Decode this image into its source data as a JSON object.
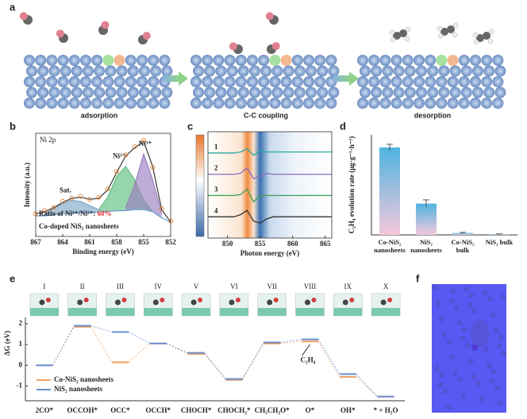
{
  "panel_labels": [
    "a",
    "b",
    "c",
    "d",
    "e",
    "f"
  ],
  "schematic": {
    "steps": [
      "adsorption",
      "C-C coupling",
      "desorption"
    ]
  },
  "chart_data": [
    {
      "type": "line",
      "title": "Ni 2p",
      "xlabel": "Binding energy (eV)",
      "ylabel": "Intensity (a.u.)",
      "x": [
        867,
        866,
        865,
        864,
        863,
        862,
        861,
        860,
        859,
        858,
        857,
        856,
        855,
        854,
        853,
        852
      ],
      "xlim": [
        867,
        852
      ],
      "xticks": [
        867,
        864,
        861,
        858,
        855,
        852
      ],
      "ylim": [
        0,
        100
      ],
      "series": [
        {
          "name": "Sat.",
          "color": "#7fa8c8",
          "values": [
            null,
            22,
            27,
            32,
            35,
            34,
            30,
            26,
            null,
            null,
            null,
            null,
            null,
            null,
            null,
            null
          ]
        },
        {
          "name": "Ni²⁺",
          "color": "#5fbf7f",
          "values": [
            null,
            null,
            null,
            null,
            null,
            null,
            null,
            26,
            38,
            58,
            68,
            55,
            35,
            24,
            null,
            null
          ]
        },
        {
          "name": "Ni³⁺",
          "color": "#9b7fc0",
          "values": [
            null,
            null,
            null,
            null,
            null,
            null,
            null,
            null,
            null,
            null,
            28,
            50,
            80,
            55,
            22,
            null
          ]
        },
        {
          "color": "#6aa0d0",
          "values": [
            20,
            20,
            21,
            22,
            22,
            23,
            23,
            24,
            24,
            25,
            25,
            26,
            26,
            24,
            18,
            14
          ]
        },
        {
          "color": "#333333",
          "values": [
            22,
            24,
            28,
            33,
            37,
            38,
            36,
            37,
            45,
            62,
            78,
            86,
            92,
            68,
            26,
            14
          ]
        },
        {
          "color": "#e8873a",
          "marker": "circle",
          "values": [
            22,
            25,
            28,
            34,
            37,
            39,
            36,
            38,
            46,
            63,
            79,
            87,
            93,
            67,
            27,
            15
          ]
        }
      ],
      "annotations": {
        "ratio_text": "Ratio of Ni³⁺/Ni²⁺: ",
        "ratio_value": "60%",
        "sample": "Co-doped NiS₂ nanosheets"
      }
    },
    {
      "type": "line",
      "xlabel": "Photon energy (eV)",
      "x": [
        847,
        849,
        851,
        852,
        853,
        854,
        855,
        856,
        857,
        859,
        861,
        863,
        866
      ],
      "xlim": [
        847,
        866
      ],
      "xticks": [
        850,
        855,
        860,
        865
      ],
      "ylim": [
        0,
        100
      ],
      "series": [
        {
          "name": "1",
          "color": "#2aa8a0",
          "values": [
            80,
            80,
            80,
            81,
            84,
            78,
            82,
            81,
            81,
            81,
            81,
            81,
            81
          ]
        },
        {
          "name": "2",
          "color": "#8a6cc0",
          "values": [
            60,
            60,
            60,
            61,
            66,
            56,
            58,
            61,
            60,
            60,
            60,
            60,
            60
          ]
        },
        {
          "name": "3",
          "color": "#3aa050",
          "values": [
            40,
            40,
            40,
            41,
            46,
            34,
            40,
            40,
            40,
            40,
            40,
            40,
            40
          ]
        },
        {
          "name": "4",
          "color": "#333333",
          "values": [
            20,
            20,
            20,
            22,
            26,
            16,
            14,
            18,
            20,
            20,
            20,
            20,
            20
          ]
        }
      ]
    },
    {
      "type": "bar",
      "ylabel": "C₂H₄ evolution rate (μg·g⁻¹·h⁻¹)",
      "color": "#4fb4e0",
      "categories": [
        "Co-NiS₂ nanosheets",
        "NiS₂ nanosheets",
        "Co-NiS₂ bulk",
        "NiS₂ bulk"
      ],
      "values": [
        70,
        25,
        1.5,
        0.5
      ],
      "errors": [
        2.5,
        3,
        0.5,
        0.3
      ],
      "ylim": [
        0,
        80
      ]
    },
    {
      "type": "energy",
      "ylabel": "ΔG (eV)",
      "ylim": [
        -1.7,
        2.3
      ],
      "yticks": [
        2,
        1,
        0,
        -1
      ],
      "states": [
        "I",
        "II",
        "III",
        "IV",
        "V",
        "VI",
        "VII",
        "VIII",
        "IX",
        "X"
      ],
      "categories": [
        "2CO*",
        "OCCOH*",
        "OCC*",
        "OCCH*",
        "CHOCH*",
        "CHOCH₂*",
        "CH₂CH₂O*",
        "O*",
        "OH*",
        "* + H₂O"
      ],
      "series": [
        {
          "name": "Co-NiS₂ nanosheets",
          "color": "#f0a060",
          "values": [
            0,
            1.85,
            0.15,
            1.05,
            0.55,
            -0.7,
            1.05,
            1.15,
            -0.55,
            -1.5
          ]
        },
        {
          "name": "NiS₂ nanosheets",
          "color": "#6a8fd0",
          "values": [
            0,
            1.9,
            1.6,
            1.05,
            0.6,
            -0.65,
            1.1,
            1.25,
            -0.42,
            -1.5
          ]
        }
      ],
      "annotation": "C₂H₄"
    }
  ]
}
